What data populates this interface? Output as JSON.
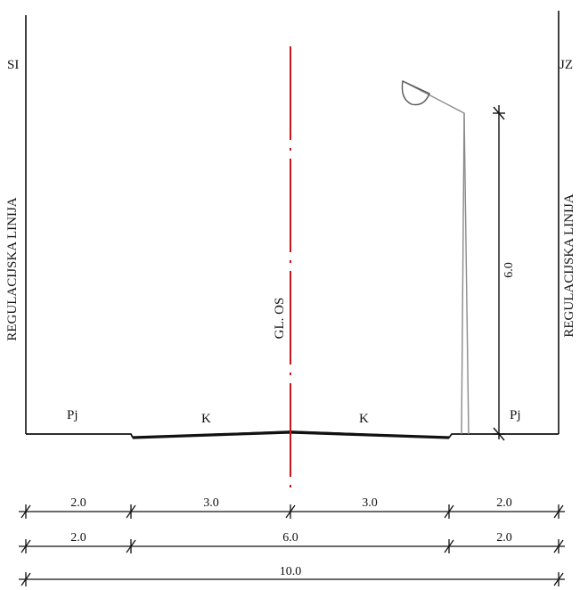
{
  "labels": {
    "left_direction": "SI",
    "right_direction": "JZ",
    "left_regulation_line": "REGULACIJSKA LINIJA",
    "right_regulation_line": "REGULACIJSKA LINIJA",
    "centerline": "GL. OS",
    "left_sidewalk": "Pj",
    "right_sidewalk": "Pj",
    "left_carriageway": "K",
    "right_carriageway": "K",
    "lamp_height": "6.0"
  },
  "dimensions": {
    "row1": [
      "2.0",
      "3.0",
      "3.0",
      "2.0"
    ],
    "row2": [
      "2.0",
      "6.0",
      "2.0"
    ],
    "row3": [
      "10.0"
    ]
  },
  "colors": {
    "line": "#111111",
    "centerline": "#c8161d",
    "lamp": "#8a8a8a"
  }
}
